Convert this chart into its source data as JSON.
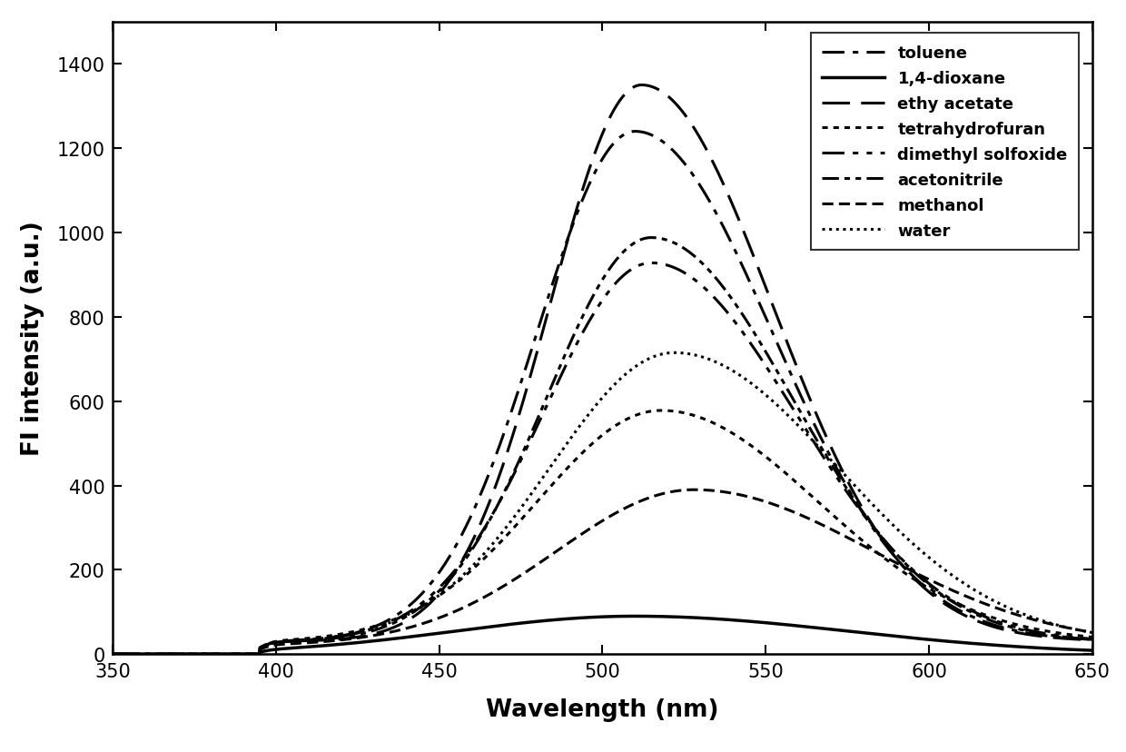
{
  "xlabel": "Wavelength (nm)",
  "ylabel": "FI intensity (a.u.)",
  "xlim": [
    350,
    650
  ],
  "ylim": [
    0,
    1500
  ],
  "xticks": [
    350,
    400,
    450,
    500,
    550,
    600,
    650
  ],
  "yticks": [
    0,
    200,
    400,
    600,
    800,
    1000,
    1200,
    1400
  ],
  "x_start": 395,
  "x_end": 650,
  "series": [
    {
      "label": "toluene",
      "peak_x": 510,
      "peak_val": 1210,
      "sigma_l": 30,
      "sigma_r": 42,
      "baseline": 30
    },
    {
      "label": "1,4-dioxane",
      "peak_x": 510,
      "peak_val": 90,
      "sigma_l": 55,
      "sigma_r": 65,
      "baseline": 0
    },
    {
      "label": "ethy acetate",
      "peak_x": 512,
      "peak_val": 1320,
      "sigma_l": 28,
      "sigma_r": 40,
      "baseline": 30
    },
    {
      "label": "tetrahydrofuran",
      "peak_x": 518,
      "peak_val": 550,
      "sigma_l": 38,
      "sigma_r": 48,
      "baseline": 28
    },
    {
      "label": "dimethyl solfoxide",
      "peak_x": 515,
      "peak_val": 900,
      "sigma_l": 33,
      "sigma_r": 44,
      "baseline": 28
    },
    {
      "label": "acetonitrile",
      "peak_x": 515,
      "peak_val": 960,
      "sigma_l": 32,
      "sigma_r": 43,
      "baseline": 28
    },
    {
      "label": "methanol",
      "peak_x": 528,
      "peak_val": 370,
      "sigma_l": 42,
      "sigma_r": 55,
      "baseline": 20
    },
    {
      "label": "water",
      "peak_x": 522,
      "peak_val": 690,
      "sigma_l": 38,
      "sigma_r": 50,
      "baseline": 25
    }
  ],
  "linestyles": {
    "toluene": [
      0,
      [
        8,
        3,
        2,
        3
      ]
    ],
    "1,4-dioxane": "solid",
    "ethy acetate": [
      0,
      [
        10,
        4
      ]
    ],
    "tetrahydrofuran": [
      0,
      [
        2,
        2
      ]
    ],
    "dimethyl solfoxide": [
      0,
      [
        8,
        3,
        2,
        3,
        2,
        3
      ]
    ],
    "acetonitrile": [
      0,
      [
        6,
        2,
        2,
        2,
        2,
        2
      ]
    ],
    "methanol": [
      0,
      [
        4,
        2
      ]
    ],
    "water": [
      0,
      [
        1,
        1.5
      ]
    ]
  },
  "linewidths": {
    "toluene": 2.2,
    "1,4-dioxane": 2.5,
    "ethy acetate": 2.2,
    "tetrahydrofuran": 2.2,
    "dimethyl solfoxide": 2.2,
    "acetonitrile": 2.2,
    "methanol": 2.2,
    "water": 2.2
  },
  "legend_fontsize": 13,
  "axis_label_fontsize": 19,
  "tick_fontsize": 15,
  "background_color": "#ffffff"
}
